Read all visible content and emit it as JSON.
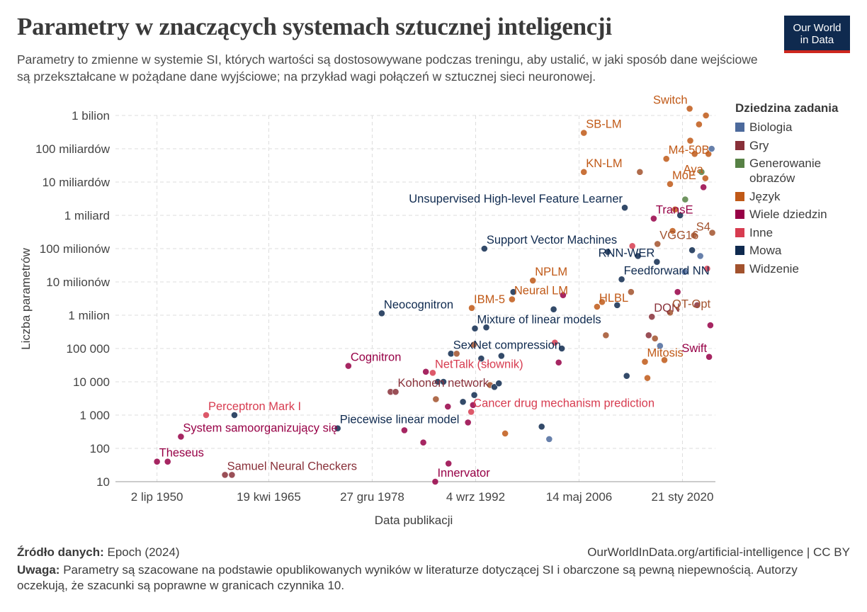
{
  "header": {
    "title": "Parametry w znaczących systemach sztucznej inteligencji",
    "subtitle": "Parametry to zmienne w systemie SI, których wartości są dostosowywane podczas treningu, aby ustalić, w jaki sposób dane wejściowe są przekształcane w pożądane dane wyjściowe; na przykład wagi połączeń w sztucznej sieci neuronowej."
  },
  "logo": {
    "line1": "Our World",
    "line2": "in Data"
  },
  "legend": {
    "title": "Dziedzina zadania",
    "items": [
      {
        "label": "Biologia",
        "color": "#4c6a9c"
      },
      {
        "label": "Gry",
        "color": "#883039"
      },
      {
        "label": "Generowanie obrazów",
        "color": "#578145"
      },
      {
        "label": "Język",
        "color": "#c05917"
      },
      {
        "label": "Wiele dziedzin",
        "color": "#970046"
      },
      {
        "label": "Inne",
        "color": "#d73c50"
      },
      {
        "label": "Mowa",
        "color": "#0f2a4f"
      },
      {
        "label": "Widzenie",
        "color": "#a2522d"
      }
    ]
  },
  "footer": {
    "source_label": "Źródło danych:",
    "source_text": " Epoch (2024)",
    "url": "OurWorldInData.org/artificial-intelligence | CC BY",
    "note_label": "Uwaga:",
    "note_text": " Parametry są szacowane na podstawie opublikowanych wyników w literaturze dotyczącej SI i obarczone są pewną niepewnością. Autorzy oczekują, że szacunki są poprawne w granicach czynnika 10."
  },
  "chart_data": {
    "type": "scatter",
    "x_axis": {
      "label": "Data publikacji",
      "range": [
        "1945-01-01",
        "2024-06-01"
      ],
      "ticks": [
        {
          "date": "1950-07-02",
          "label": "2 lip 1950"
        },
        {
          "date": "1965-04-19",
          "label": "19 kwi 1965"
        },
        {
          "date": "1978-12-27",
          "label": "27 gru 1978"
        },
        {
          "date": "1992-09-04",
          "label": "4 wrz 1992"
        },
        {
          "date": "2006-05-14",
          "label": "14 maj 2006"
        },
        {
          "date": "2020-01-21",
          "label": "21 sty 2020"
        }
      ]
    },
    "y_axis": {
      "label": "Liczba parametrów",
      "scale": "log",
      "range": [
        10,
        1000000000000
      ],
      "ticks": [
        {
          "value": 10,
          "label": "10"
        },
        {
          "value": 100,
          "label": "100"
        },
        {
          "value": 1000,
          "label": "1 000"
        },
        {
          "value": 10000,
          "label": "10 000"
        },
        {
          "value": 100000,
          "label": "100 000"
        },
        {
          "value": 1000000,
          "label": "1 milion"
        },
        {
          "value": 10000000,
          "label": "10 milionów"
        },
        {
          "value": 100000000,
          "label": "100 milionów"
        },
        {
          "value": 1000000000,
          "label": "1 miliard"
        },
        {
          "value": 10000000000,
          "label": "10 miliardów"
        },
        {
          "value": 100000000000,
          "label": "100 miliardów"
        },
        {
          "value": 1000000000000,
          "label": "1 bilion"
        }
      ]
    },
    "grid": true,
    "legend_position": "right",
    "points": [
      {
        "label": "Theseus",
        "date": "1950-07-02",
        "value": 40,
        "domain": "Wiele dziedzin"
      },
      {
        "label": "",
        "date": "1951-12-01",
        "value": 40,
        "domain": "Wiele dziedzin"
      },
      {
        "label": "Samuel Neural Checkers",
        "date": "1959-07-01",
        "value": 16,
        "domain": "Gry"
      },
      {
        "label": "",
        "date": "1960-06-01",
        "value": 16,
        "domain": "Gry"
      },
      {
        "label": "Perceptron Mark I",
        "date": "1957-01-01",
        "value": 1000,
        "domain": "Inne"
      },
      {
        "label": "",
        "date": "1960-10-01",
        "value": 1000,
        "domain": "Mowa"
      },
      {
        "label": "System samoorganizujący się",
        "date": "1953-09-01",
        "value": 225,
        "domain": "Wiele dziedzin"
      },
      {
        "label": "Piecewise linear model",
        "date": "1974-06-01",
        "value": 400,
        "domain": "Mowa"
      },
      {
        "label": "Neocognitron",
        "date": "1980-04-01",
        "value": 1140000,
        "domain": "Mowa"
      },
      {
        "label": "Cognitron",
        "date": "1975-11-01",
        "value": 30000,
        "domain": "Wiele dziedzin"
      },
      {
        "label": "",
        "date": "1981-06-01",
        "value": 5000,
        "domain": "Gry"
      },
      {
        "label": "Kohonen network",
        "date": "1982-02-01",
        "value": 5000,
        "domain": "Gry"
      },
      {
        "label": "",
        "date": "1983-04-01",
        "value": 350,
        "domain": "Wiele dziedzin"
      },
      {
        "label": "",
        "date": "1985-10-01",
        "value": 150,
        "domain": "Wiele dziedzin"
      },
      {
        "label": "",
        "date": "1986-02-01",
        "value": 20000,
        "domain": "Wiele dziedzin"
      },
      {
        "label": "NetTalk (słownik)",
        "date": "1987-01-01",
        "value": 18600,
        "domain": "Inne"
      },
      {
        "label": "",
        "date": "1987-06-01",
        "value": 3000,
        "domain": "Widzenie"
      },
      {
        "label": "",
        "date": "1987-09-01",
        "value": 10000,
        "domain": "Mowa"
      },
      {
        "label": "",
        "date": "1988-06-01",
        "value": 10000,
        "domain": "Mowa"
      },
      {
        "label": "",
        "date": "1989-01-01",
        "value": 1800,
        "domain": "Wiele dziedzin"
      },
      {
        "label": "Innervator",
        "date": "1987-05-01",
        "value": 10,
        "domain": "Wiele dziedzin"
      },
      {
        "label": "",
        "date": "1989-02-01",
        "value": 35,
        "domain": "Wiele dziedzin"
      },
      {
        "label": "SexNet compression",
        "date": "1989-06-01",
        "value": 70000,
        "domain": "Mowa"
      },
      {
        "label": "",
        "date": "1990-03-01",
        "value": 70000,
        "domain": "Widzenie"
      },
      {
        "label": "Cancer drug mechanism prediction",
        "date": "1992-02-01",
        "value": 1250,
        "domain": "Inne"
      },
      {
        "label": "",
        "date": "1991-09-01",
        "value": 600,
        "domain": "Wiele dziedzin"
      },
      {
        "label": "",
        "date": "1991-01-01",
        "value": 2500,
        "domain": "Mowa"
      },
      {
        "label": "",
        "date": "1992-05-01",
        "value": 2000,
        "domain": "Wiele dziedzin"
      },
      {
        "label": "",
        "date": "1992-07-01",
        "value": 4000,
        "domain": "Mowa"
      },
      {
        "label": "Mixture of linear models",
        "date": "1992-08-01",
        "value": 400000,
        "domain": "Mowa"
      },
      {
        "label": "",
        "date": "1994-02-01",
        "value": 430000,
        "domain": "Mowa"
      },
      {
        "label": "",
        "date": "1992-06-01",
        "value": 130000,
        "domain": "Widzenie"
      },
      {
        "label": "",
        "date": "1993-06-01",
        "value": 50000,
        "domain": "Mowa"
      },
      {
        "label": "",
        "date": "1994-08-01",
        "value": 8000,
        "domain": "Widzenie"
      },
      {
        "label": "",
        "date": "1995-03-01",
        "value": 7000,
        "domain": "Mowa"
      },
      {
        "label": "",
        "date": "1995-10-01",
        "value": 9000,
        "domain": "Mowa"
      },
      {
        "label": "",
        "date": "1996-02-01",
        "value": 60000,
        "domain": "Mowa"
      },
      {
        "label": "",
        "date": "1996-08-01",
        "value": 280,
        "domain": "Język"
      },
      {
        "label": "IBM-5",
        "date": "1992-03-01",
        "value": 1650000,
        "domain": "Język"
      },
      {
        "label": "Support Vector Machines",
        "date": "1993-11-01",
        "value": 100000000,
        "domain": "Mowa"
      },
      {
        "label": "Neural LM",
        "date": "1997-07-01",
        "value": 3000000,
        "domain": "Język"
      },
      {
        "label": "",
        "date": "1997-09-01",
        "value": 5000000,
        "domain": "Mowa"
      },
      {
        "label": "NPLM",
        "date": "2000-04-01",
        "value": 11000000,
        "domain": "Język"
      },
      {
        "label": "",
        "date": "2001-06-01",
        "value": 450,
        "domain": "Mowa"
      },
      {
        "label": "",
        "date": "2002-06-01",
        "value": 190,
        "domain": "Biologia"
      },
      {
        "label": "",
        "date": "2003-01-01",
        "value": 1500000,
        "domain": "Mowa"
      },
      {
        "label": "",
        "date": "2003-03-01",
        "value": 150000,
        "domain": "Inne"
      },
      {
        "label": "",
        "date": "2003-09-01",
        "value": 38000,
        "domain": "Wiele dziedzin"
      },
      {
        "label": "",
        "date": "2004-02-01",
        "value": 100000,
        "domain": "Mowa"
      },
      {
        "label": "",
        "date": "2004-04-01",
        "value": 4000000,
        "domain": "Wiele dziedzin"
      },
      {
        "label": "SB-LM",
        "date": "2007-01-01",
        "value": 300000000000,
        "domain": "Język"
      },
      {
        "label": "KN-LM",
        "date": "2007-01-01",
        "value": 20000000000,
        "domain": "Język"
      },
      {
        "label": "HLBL",
        "date": "2008-10-01",
        "value": 1800000,
        "domain": "Język"
      },
      {
        "label": "",
        "date": "2009-06-01",
        "value": 2500000,
        "domain": "Język"
      },
      {
        "label": "",
        "date": "2009-12-01",
        "value": 250000,
        "domain": "Widzenie"
      },
      {
        "label": "",
        "date": "2010-03-01",
        "value": 80000000,
        "domain": "Mowa"
      },
      {
        "label": "",
        "date": "2011-06-01",
        "value": 2000000,
        "domain": "Mowa"
      },
      {
        "label": "Feedforward NN",
        "date": "2012-01-01",
        "value": 12000000,
        "domain": "Mowa"
      },
      {
        "label": "Unsupervised High-level Feature Learner",
        "date": "2012-06-01",
        "value": 1700000000,
        "domain": "Mowa"
      },
      {
        "label": "",
        "date": "2012-09-01",
        "value": 15000,
        "domain": "Mowa"
      },
      {
        "label": "",
        "date": "2013-04-01",
        "value": 5000000,
        "domain": "Widzenie"
      },
      {
        "label": "",
        "date": "2013-06-01",
        "value": 120000000,
        "domain": "Inne"
      },
      {
        "label": "",
        "date": "2014-03-01",
        "value": 60000000,
        "domain": "Mowa"
      },
      {
        "label": "",
        "date": "2014-06-01",
        "value": 20000000000,
        "domain": "Widzenie"
      },
      {
        "label": "Mitosis",
        "date": "2015-02-01",
        "value": 40000,
        "domain": "Język"
      },
      {
        "label": "",
        "date": "2015-06-01",
        "value": 13000,
        "domain": "Język"
      },
      {
        "label": "",
        "date": "2015-08-01",
        "value": 250000,
        "domain": "Gry"
      },
      {
        "label": "",
        "date": "2016-06-01",
        "value": 200000,
        "domain": "Widzenie"
      },
      {
        "label": "DQN",
        "date": "2016-01-01",
        "value": 900000,
        "domain": "Gry"
      },
      {
        "label": "RNN-WER",
        "date": "2016-09-01",
        "value": 40000000,
        "domain": "Mowa"
      },
      {
        "label": "VGG16",
        "date": "2016-10-01",
        "value": 138000000,
        "domain": "Widzenie"
      },
      {
        "label": "TransE",
        "date": "2016-04-01",
        "value": 800000000,
        "domain": "Wiele dziedzin"
      },
      {
        "label": "",
        "date": "2017-02-01",
        "value": 120000,
        "domain": "Biologia"
      },
      {
        "label": "",
        "date": "2017-09-01",
        "value": 45000,
        "domain": "Język"
      },
      {
        "label": "MoE",
        "date": "2018-06-01",
        "value": 8700000000,
        "domain": "Język"
      },
      {
        "label": "M4-50B",
        "date": "2017-12-01",
        "value": 50000000000,
        "domain": "Język"
      },
      {
        "label": "QT-Opt",
        "date": "2018-06-01",
        "value": 1200000,
        "domain": "Widzenie"
      },
      {
        "label": "",
        "date": "2019-06-01",
        "value": 5000000,
        "domain": "Wiele dziedzin"
      },
      {
        "label": "S4",
        "date": "2021-08-01",
        "value": 250000000,
        "domain": "Widzenie"
      },
      {
        "label": "Aya",
        "date": "2023-02-01",
        "value": 13000000000,
        "domain": "Język"
      },
      {
        "label": "Switch",
        "date": "2021-01-01",
        "value": 1600000000000,
        "domain": "Język"
      },
      {
        "label": "Swift",
        "date": "2023-08-01",
        "value": 56000,
        "domain": "Wiele dziedzin"
      },
      {
        "label": "",
        "date": "2023-10-01",
        "value": 500000,
        "domain": "Wiele dziedzin"
      },
      {
        "label": "",
        "date": "2019-10-01",
        "value": 1000000000,
        "domain": "Mowa"
      },
      {
        "label": "",
        "date": "2020-06-01",
        "value": 3000000000,
        "domain": "Generowanie obrazów"
      },
      {
        "label": "",
        "date": "2021-02-01",
        "value": 175000000000,
        "domain": "Język"
      },
      {
        "label": "",
        "date": "2021-09-01",
        "value": 70000000000,
        "domain": "Język"
      },
      {
        "label": "",
        "date": "2022-04-01",
        "value": 540000000000,
        "domain": "Język"
      },
      {
        "label": "",
        "date": "2022-08-01",
        "value": 20000000000,
        "domain": "Generowanie obrazów"
      },
      {
        "label": "",
        "date": "2022-11-01",
        "value": 7000000000,
        "domain": "Wiele dziedzin"
      },
      {
        "label": "",
        "date": "2023-03-01",
        "value": 1000000000000,
        "domain": "Język"
      },
      {
        "label": "",
        "date": "2023-07-01",
        "value": 70000000000,
        "domain": "Język"
      },
      {
        "label": "",
        "date": "2023-12-01",
        "value": 100000000000,
        "domain": "Biologia"
      },
      {
        "label": "",
        "date": "2024-01-01",
        "value": 300000000,
        "domain": "Widzenie"
      },
      {
        "label": "",
        "date": "2018-10-01",
        "value": 340000000,
        "domain": "Język"
      },
      {
        "label": "",
        "date": "2019-02-01",
        "value": 1500000000,
        "domain": "Język"
      },
      {
        "label": "",
        "date": "2020-05-01",
        "value": 20000000,
        "domain": "Biologia"
      },
      {
        "label": "",
        "date": "2021-05-01",
        "value": 90000000,
        "domain": "Mowa"
      },
      {
        "label": "",
        "date": "2022-01-01",
        "value": 2000000,
        "domain": "Gry"
      },
      {
        "label": "",
        "date": "2022-06-01",
        "value": 60000000,
        "domain": "Biologia"
      },
      {
        "label": "",
        "date": "2023-05-01",
        "value": 25000000,
        "domain": "Inne"
      }
    ]
  }
}
